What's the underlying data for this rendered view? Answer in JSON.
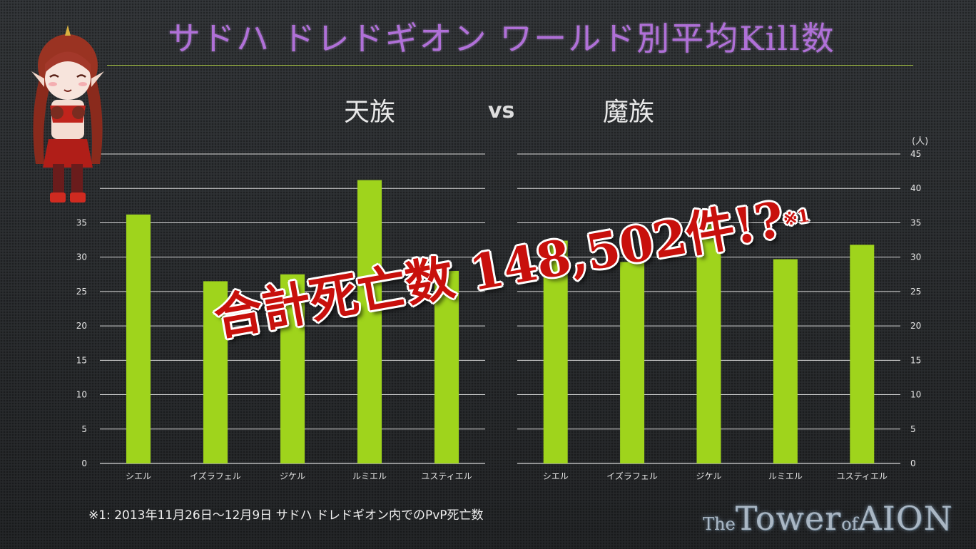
{
  "title": "サドハ ドレドギオン ワールド別平均Kill数",
  "factions": {
    "left": "天族",
    "vs": "vs",
    "right": "魔族"
  },
  "unit_label": "(人)",
  "overlay_text": {
    "main": "合計死亡数 148,502件!?",
    "note": "※1"
  },
  "footnote": "※1: 2013年11月26日～12月9日 サドハ ドレドギオン内でのPvP死亡数",
  "logo": {
    "the": "The",
    "tower": "Tower",
    "of": "of",
    "aion": "AION"
  },
  "colors": {
    "bar": "#9fd41c",
    "grid": "#d8d8d8",
    "title": "#b070d8",
    "overlay": "#c8100c"
  },
  "chart_data": [
    {
      "type": "bar",
      "title": "天族",
      "categories": [
        "シエル",
        "イズラフェル",
        "ジケル",
        "ルミエル",
        "ユスティエル"
      ],
      "values": [
        36.2,
        26.5,
        27.5,
        41.2,
        28.0
      ],
      "ylim": [
        0,
        45
      ],
      "yticks": [
        0,
        5,
        10,
        15,
        20,
        25,
        30,
        35
      ],
      "grid": true
    },
    {
      "type": "bar",
      "title": "魔族",
      "categories": [
        "シエル",
        "イズラフェル",
        "ジケル",
        "ルミエル",
        "ユスティエル"
      ],
      "values": [
        32.4,
        29.3,
        36.1,
        29.7,
        31.8
      ],
      "ylim": [
        0,
        45
      ],
      "yticks": [
        0,
        5,
        10,
        15,
        20,
        25,
        30,
        35,
        40,
        45
      ],
      "ylabel": "(人)",
      "grid": true
    }
  ]
}
